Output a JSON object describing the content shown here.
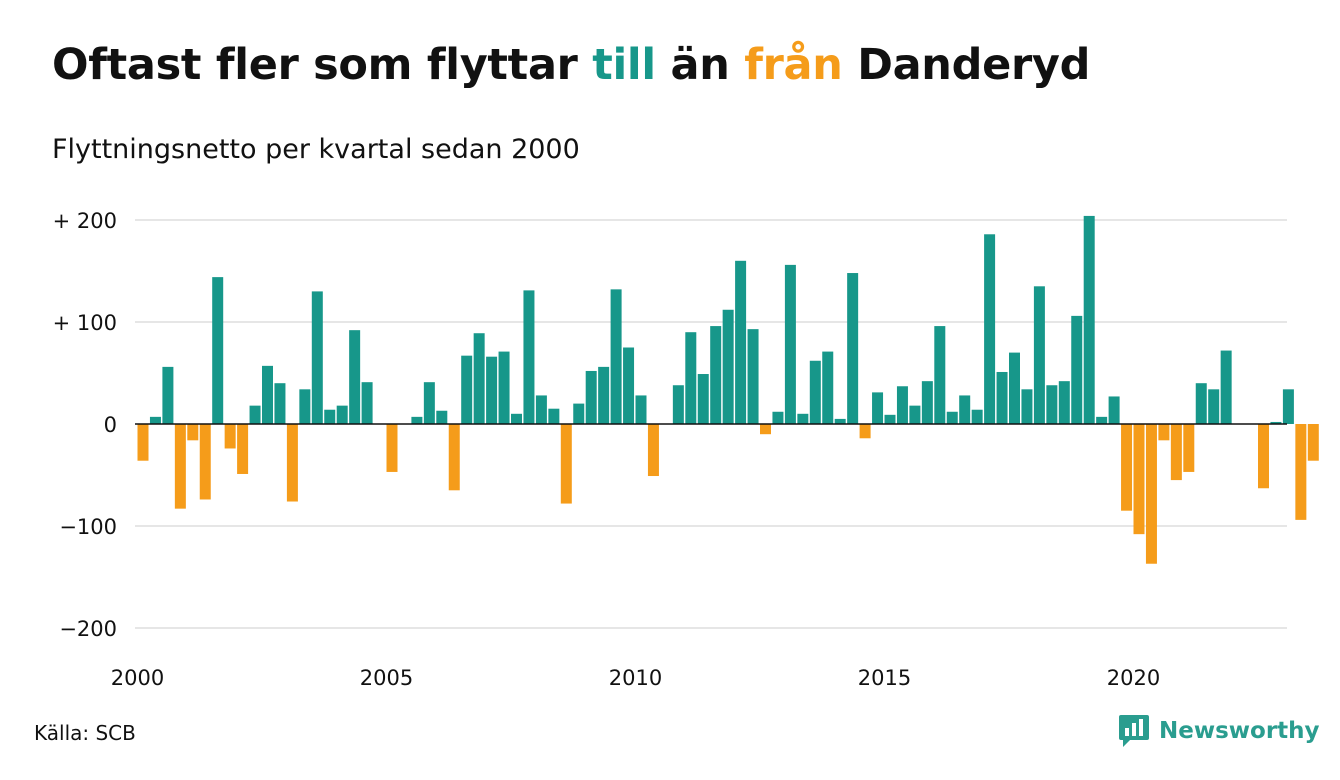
{
  "header": {
    "title_part1": "Oftast fler som flyttar ",
    "title_till": "till",
    "title_part2": " än ",
    "title_fran": "från",
    "title_part3": " Danderyd",
    "subtitle": "Flyttningsnetto per kvartal sedan 2000"
  },
  "footer": {
    "source": "Källa: SCB",
    "brand": "Newsworthy",
    "brand_icon": "chart-speech-bubble-icon"
  },
  "colors": {
    "positive": "#17978a",
    "negative": "#f59c1a",
    "text": "#111111",
    "grid": "#dddddd",
    "brand": "#2a9d8f"
  },
  "chart_data": {
    "type": "bar",
    "title": "Oftast fler som flyttar till än från Danderyd",
    "subtitle": "Flyttningsnetto per kvartal sedan 2000",
    "xlabel": "",
    "ylabel": "",
    "ylim": [
      -200,
      200
    ],
    "yticks": [
      {
        "value": 200,
        "label": "+ 200"
      },
      {
        "value": 100,
        "label": "+ 100"
      },
      {
        "value": 0,
        "label": "0"
      },
      {
        "value": -100,
        "label": "−100"
      },
      {
        "value": -200,
        "label": "−200"
      }
    ],
    "xticks": [
      "2000",
      "2005",
      "2010",
      "2015",
      "2020"
    ],
    "start_year": 2000,
    "grid": true,
    "legend": "none",
    "values": [
      -36,
      7,
      56,
      -83,
      -16,
      -74,
      144,
      -24,
      -49,
      18,
      57,
      40,
      -76,
      34,
      130,
      14,
      18,
      92,
      41,
      0,
      -47,
      0,
      7,
      41,
      13,
      -65,
      67,
      89,
      66,
      71,
      10,
      131,
      28,
      15,
      -78,
      20,
      52,
      56,
      132,
      75,
      28,
      -51,
      0,
      38,
      90,
      49,
      96,
      112,
      160,
      93,
      -10,
      12,
      156,
      10,
      62,
      71,
      5,
      148,
      -14,
      31,
      9,
      37,
      18,
      42,
      96,
      12,
      28,
      14,
      186,
      51,
      70,
      34,
      135,
      38,
      42,
      106,
      204,
      7,
      27,
      -85,
      -108,
      -137,
      -16,
      -55,
      -47,
      40,
      34,
      72,
      0,
      0,
      -63,
      2,
      34,
      -94,
      -36
    ]
  }
}
